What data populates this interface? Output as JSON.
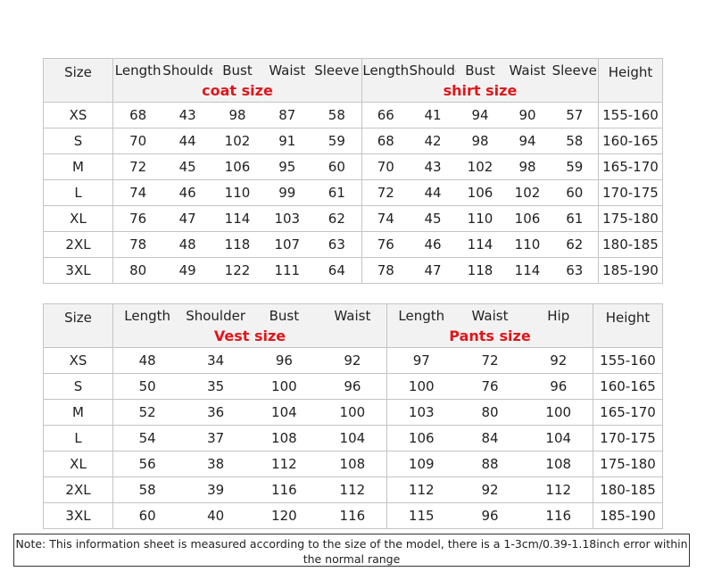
{
  "tables": [
    {
      "header": {
        "size": "Size",
        "groups": [
          {
            "name": "coat size",
            "columns": [
              "Length",
              "Shoulder",
              "Bust",
              "Waist",
              "Sleeve"
            ]
          },
          {
            "name": "shirt size",
            "columns": [
              "Length",
              "Shoulder",
              "Bust",
              "Waist",
              "Sleeve"
            ]
          }
        ],
        "height": "Height"
      },
      "rows": [
        [
          "XS",
          68,
          43,
          98,
          87,
          58,
          66,
          41,
          94,
          90,
          57,
          "155-160"
        ],
        [
          "S",
          70,
          44,
          102,
          91,
          59,
          68,
          42,
          98,
          94,
          58,
          "160-165"
        ],
        [
          "M",
          72,
          45,
          106,
          95,
          60,
          70,
          43,
          102,
          98,
          59,
          "165-170"
        ],
        [
          "L",
          74,
          46,
          110,
          99,
          61,
          72,
          44,
          106,
          102,
          60,
          "170-175"
        ],
        [
          "XL",
          76,
          47,
          114,
          103,
          62,
          74,
          45,
          110,
          106,
          61,
          "175-180"
        ],
        [
          "2XL",
          78,
          48,
          118,
          107,
          63,
          76,
          46,
          114,
          110,
          62,
          "180-185"
        ],
        [
          "3XL",
          80,
          49,
          122,
          111,
          64,
          78,
          47,
          118,
          114,
          63,
          "185-190"
        ]
      ]
    },
    {
      "header": {
        "size": "Size",
        "groups": [
          {
            "name": "Vest size",
            "columns": [
              "Length",
              "Shoulder",
              "Bust",
              "Waist"
            ]
          },
          {
            "name": "Pants size",
            "columns": [
              "Length",
              "Waist",
              "Hip"
            ]
          }
        ],
        "height": "Height"
      },
      "rows": [
        [
          "XS",
          48,
          34,
          96,
          92,
          97,
          72,
          92,
          "155-160"
        ],
        [
          "S",
          50,
          35,
          100,
          96,
          100,
          76,
          96,
          "160-165"
        ],
        [
          "M",
          52,
          36,
          104,
          100,
          103,
          80,
          100,
          "165-170"
        ],
        [
          "L",
          54,
          37,
          108,
          104,
          106,
          84,
          104,
          "170-175"
        ],
        [
          "XL",
          56,
          38,
          112,
          108,
          109,
          88,
          108,
          "175-180"
        ],
        [
          "2XL",
          58,
          39,
          116,
          112,
          112,
          92,
          112,
          "180-185"
        ],
        [
          "3XL",
          60,
          40,
          120,
          116,
          115,
          96,
          116,
          "185-190"
        ]
      ]
    }
  ],
  "note": "Note: This information sheet is measured according to the size of the model, there is a 1-3cm/0.39-1.18inch error within the normal range"
}
